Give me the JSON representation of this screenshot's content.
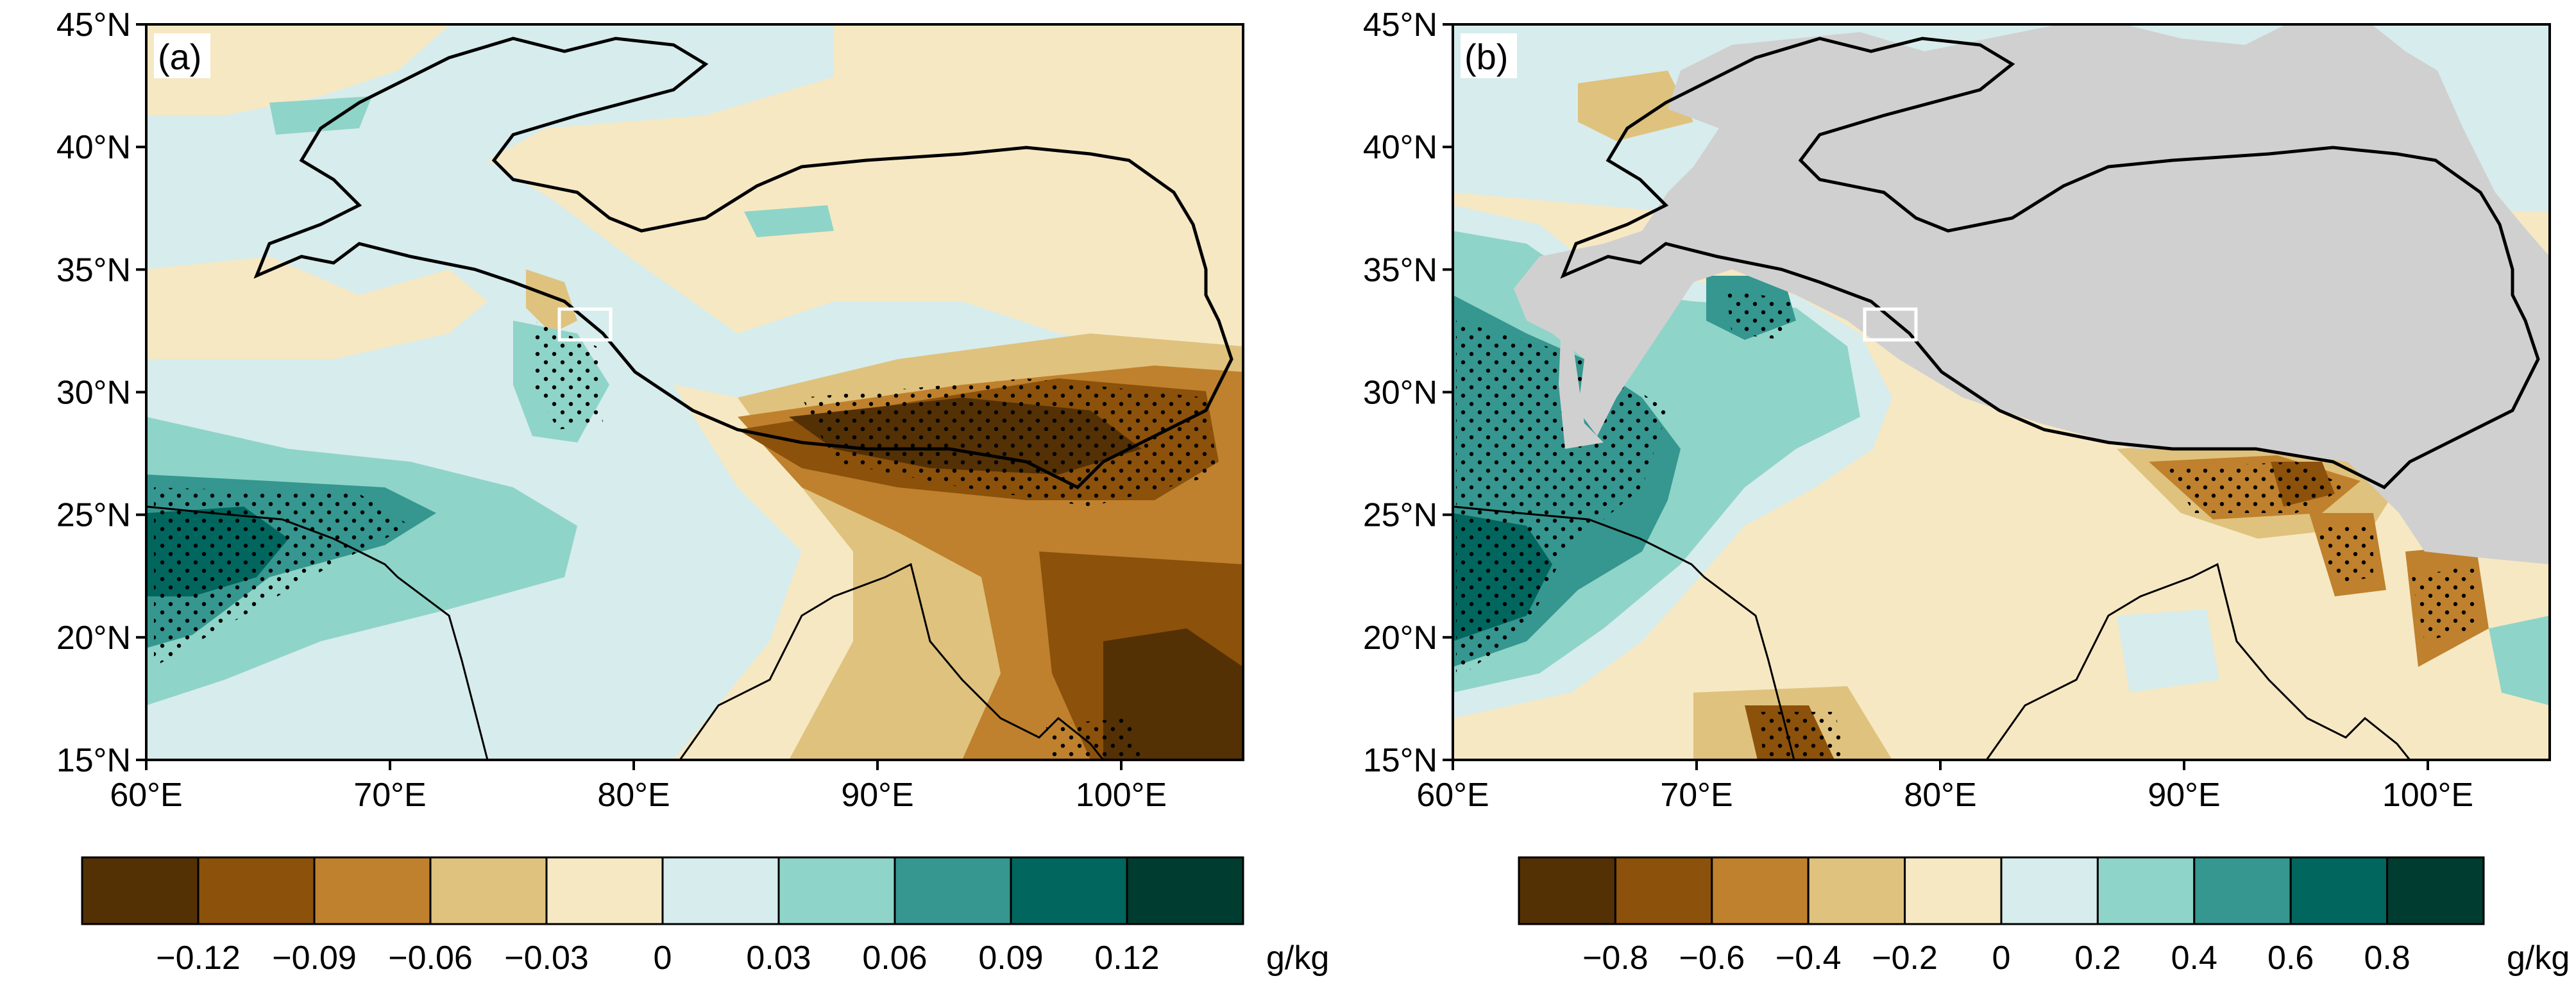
{
  "panels": [
    {
      "label": "(a)",
      "colorbar": {
        "colors": [
          "#543005",
          "#8c510a",
          "#bf812d",
          "#dfc27d",
          "#f6e8c3",
          "#d7ecec",
          "#8fd4c8",
          "#35978f",
          "#01665e",
          "#003c30"
        ],
        "ticks": [
          "−0.12",
          "−0.09",
          "−0.06",
          "−0.03",
          "0",
          "0.03",
          "0.06",
          "0.09",
          "0.12"
        ],
        "unit": "g/kg"
      }
    },
    {
      "label": "(b)",
      "colorbar": {
        "colors": [
          "#543005",
          "#8c510a",
          "#bf812d",
          "#dfc27d",
          "#f6e8c3",
          "#d7ecec",
          "#8fd4c8",
          "#35978f",
          "#01665e",
          "#003c30"
        ],
        "ticks": [
          "−0.8",
          "−0.6",
          "−0.4",
          "−0.2",
          "0",
          "0.2",
          "0.4",
          "0.6",
          "0.8"
        ],
        "unit": "g/kg"
      }
    }
  ],
  "axes": {
    "lat_ticks": [
      "45°N",
      "40°N",
      "35°N",
      "30°N",
      "25°N",
      "20°N",
      "15°N"
    ],
    "lon_ticks": [
      "60°E",
      "70°E",
      "80°E",
      "90°E",
      "100°E"
    ],
    "lat_range": [
      15,
      45
    ],
    "lon_range": [
      60,
      105
    ]
  },
  "colors": {
    "masked_terrain": "#d0d0d0",
    "box_outline": "#ffffff",
    "stipple": "#000000"
  }
}
